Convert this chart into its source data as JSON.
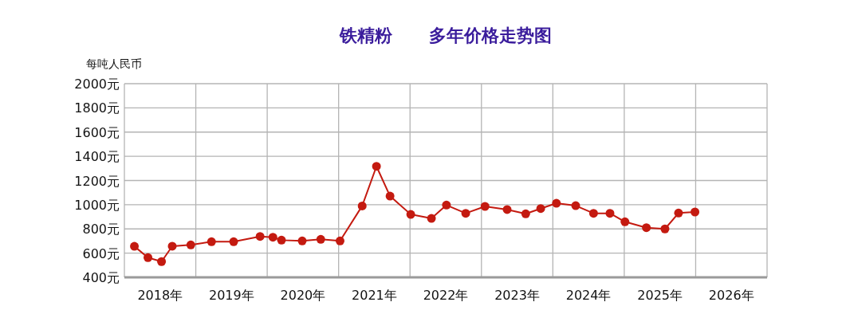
{
  "chart_data": {
    "type": "line",
    "title": "铁精粉      多年价格走势图",
    "ylabel": "每吨人民币",
    "xlim": [
      2018,
      2027
    ],
    "xticks": [
      {
        "value": 2018,
        "label": null
      },
      {
        "value": 2018.5,
        "label": "2018年"
      },
      {
        "value": 2019,
        "label": null
      },
      {
        "value": 2019.5,
        "label": "2019年"
      },
      {
        "value": 2020,
        "label": null
      },
      {
        "value": 2020.5,
        "label": "2020年"
      },
      {
        "value": 2021,
        "label": null
      },
      {
        "value": 2021.5,
        "label": "2021年"
      },
      {
        "value": 2022,
        "label": null
      },
      {
        "value": 2022.5,
        "label": "2022年"
      },
      {
        "value": 2023,
        "label": null
      },
      {
        "value": 2023.5,
        "label": "2023年"
      },
      {
        "value": 2024,
        "label": null
      },
      {
        "value": 2024.5,
        "label": "2024年"
      },
      {
        "value": 2025,
        "label": null
      },
      {
        "value": 2025.5,
        "label": "2025年"
      },
      {
        "value": 2026,
        "label": null
      },
      {
        "value": 2026.5,
        "label": "2026年"
      },
      {
        "value": 2027,
        "label": null
      }
    ],
    "ylim": [
      400,
      2000
    ],
    "yticks": [
      {
        "value": 400,
        "label": "400元"
      },
      {
        "value": 600,
        "label": "600元"
      },
      {
        "value": 800,
        "label": "800元"
      },
      {
        "value": 1000,
        "label": "1000元"
      },
      {
        "value": 1200,
        "label": "1200元"
      },
      {
        "value": 1400,
        "label": "1400元"
      },
      {
        "value": 1600,
        "label": "1600元"
      },
      {
        "value": 1800,
        "label": "1800元"
      },
      {
        "value": 2000,
        "label": "2000元"
      }
    ],
    "grid": true,
    "marker": "circle",
    "line_style": "solid",
    "series": [
      {
        "color": "#c41a10",
        "x": [
          2018.14,
          2018.33,
          2018.52,
          2018.67,
          2018.93,
          2019.22,
          2019.53,
          2019.9,
          2020.08,
          2020.2,
          2020.49,
          2020.75,
          2021.02,
          2021.33,
          2021.53,
          2021.72,
          2022.01,
          2022.3,
          2022.51,
          2022.78,
          2023.05,
          2023.36,
          2023.62,
          2023.83,
          2024.05,
          2024.32,
          2024.57,
          2024.8,
          2025.01,
          2025.31,
          2025.57,
          2025.76,
          2025.99
        ],
        "values": [
          656,
          563,
          530,
          657,
          668,
          694,
          694,
          738,
          731,
          707,
          701,
          714,
          701,
          990,
          1317,
          1071,
          920,
          887,
          997,
          929,
          986,
          960,
          925,
          968,
          1012,
          992,
          929,
          929,
          859,
          810,
          800,
          931,
          940
        ]
      }
    ]
  }
}
